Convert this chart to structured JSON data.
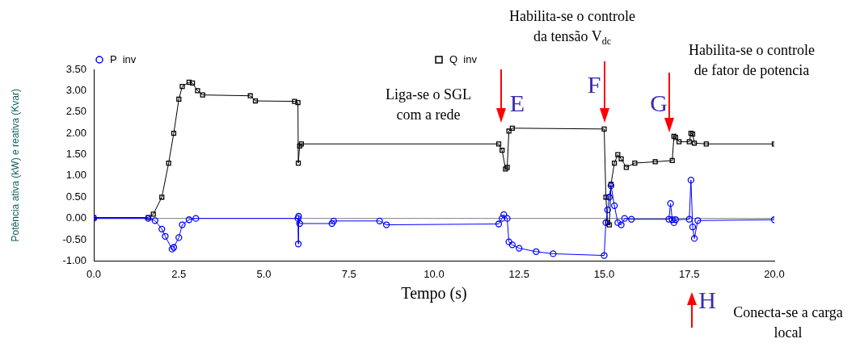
{
  "chart_data": {
    "type": "line",
    "xlabel": "Tempo (s)",
    "ylabel": "Potência ativa (kW) e reativa (Kvar)",
    "xlim": [
      0,
      20
    ],
    "ylim": [
      -1,
      3.5
    ],
    "xticks": [
      {
        "value": 0,
        "label": "0.0"
      },
      {
        "value": 2.5,
        "label": "2.5"
      },
      {
        "value": 5,
        "label": "5.0"
      },
      {
        "value": 7.5,
        "label": "7.5"
      },
      {
        "value": 10,
        "label": "10.0"
      },
      {
        "value": 12.5,
        "label": "12.5"
      },
      {
        "value": 15,
        "label": "15.0"
      },
      {
        "value": 17.5,
        "label": "17.5"
      },
      {
        "value": 20,
        "label": "20.0"
      }
    ],
    "yticks": [
      {
        "value": -1,
        "label": "-1.00"
      },
      {
        "value": -0.5,
        "label": "-0.50"
      },
      {
        "value": 0,
        "label": "0.00"
      },
      {
        "value": 0.5,
        "label": "0.50"
      },
      {
        "value": 1,
        "label": "1.00"
      },
      {
        "value": 1.5,
        "label": "1.50"
      },
      {
        "value": 2,
        "label": "2.00"
      },
      {
        "value": 2.5,
        "label": "2.50"
      },
      {
        "value": 3,
        "label": "3.00"
      },
      {
        "value": 3.5,
        "label": "3.50"
      }
    ],
    "grid": false,
    "legend": "top",
    "ref_lines": [
      {
        "axis": "y",
        "value": 0,
        "color": "#808080"
      }
    ],
    "series": [
      {
        "name": "P  inv",
        "color": "#0000ff",
        "marker": "circle",
        "x": [
          0,
          1.6,
          1.8,
          2.0,
          2.1,
          2.3,
          2.35,
          2.5,
          2.6,
          2.8,
          3.0,
          6.0,
          6.01,
          6.02,
          6.05,
          7.0,
          7.05,
          8.4,
          8.6,
          11.9,
          12.0,
          12.05,
          12.15,
          12.2,
          12.3,
          12.5,
          13.0,
          13.5,
          15.0,
          15.05,
          15.1,
          15.15,
          15.2,
          15.3,
          15.4,
          15.5,
          15.6,
          15.8,
          16.9,
          16.95,
          17.0,
          17.05,
          17.1,
          17.5,
          17.55,
          17.6,
          17.65,
          17.75,
          20
        ],
        "values": [
          0,
          0,
          -0.05,
          -0.25,
          -0.42,
          -0.72,
          -0.68,
          -0.45,
          -0.15,
          -0.03,
          0,
          0,
          -0.6,
          0.05,
          -0.12,
          -0.12,
          -0.06,
          -0.06,
          -0.15,
          -0.13,
          0,
          0.09,
          0,
          -0.55,
          -0.62,
          -0.7,
          -0.78,
          -0.83,
          -0.87,
          -0.1,
          0.2,
          0.5,
          0.77,
          0.3,
          -0.1,
          -0.15,
          0,
          -0.02,
          -0.02,
          0.35,
          -0.03,
          -0.1,
          -0.03,
          -0.02,
          0.9,
          -0.2,
          -0.47,
          -0.05,
          -0.03
        ]
      },
      {
        "name": "Q  inv",
        "color": "#000000",
        "marker": "square",
        "x": [
          0,
          1.6,
          1.75,
          2.0,
          2.2,
          2.35,
          2.5,
          2.6,
          2.8,
          2.9,
          3.05,
          3.2,
          4.6,
          4.75,
          5.9,
          6.0,
          6.01,
          6.05,
          6.1,
          11.9,
          12.0,
          12.1,
          12.15,
          12.2,
          12.3,
          15.0,
          15.05,
          15.1,
          15.15,
          15.2,
          15.3,
          15.4,
          15.5,
          15.65,
          15.9,
          16.5,
          17.0,
          17.05,
          17.1,
          17.2,
          17.5,
          17.55,
          17.6,
          17.65,
          18.0,
          20
        ],
        "values": [
          0.02,
          0.02,
          0.1,
          0.5,
          1.3,
          2.0,
          2.8,
          3.1,
          3.2,
          3.18,
          3.0,
          2.9,
          2.88,
          2.76,
          2.75,
          2.72,
          1.3,
          1.7,
          1.75,
          1.75,
          1.6,
          1.16,
          1.2,
          2.05,
          2.12,
          2.1,
          0.5,
          -0.1,
          -0.15,
          0.8,
          1.3,
          1.5,
          1.4,
          1.2,
          1.3,
          1.33,
          1.36,
          1.93,
          1.9,
          1.8,
          1.8,
          2.0,
          1.98,
          1.77,
          1.75,
          1.75
        ]
      }
    ],
    "annotations": [
      "Liga-se o SGL\ncom a rede",
      "E",
      "Habilita-se o controle\nda tensão V$_{dc}$",
      "F",
      "Habilita-se o controle\nde fator de potencia",
      "G",
      "H",
      "Conecta-se a carga\nlocal"
    ]
  }
}
